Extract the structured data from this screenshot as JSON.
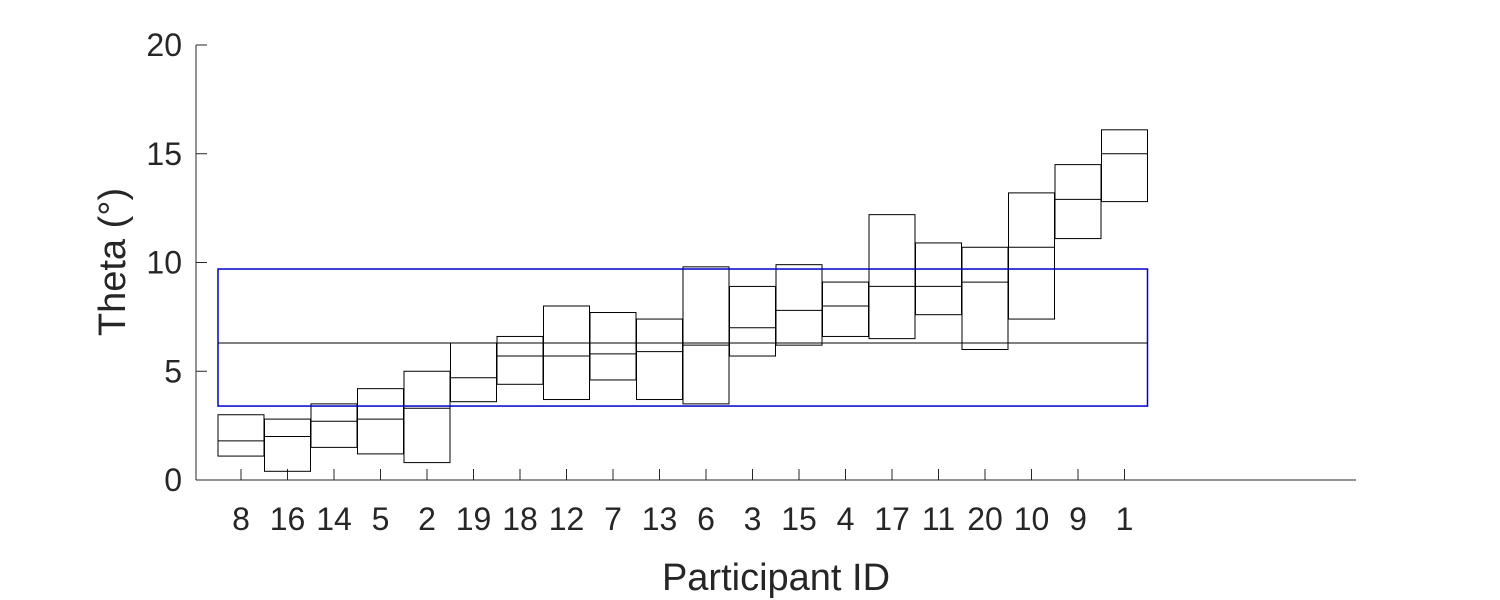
{
  "chart_data": {
    "type": "boxplot",
    "title": "",
    "xlabel": "Participant ID",
    "ylabel": "Theta (°)",
    "ylim": [
      0,
      20
    ],
    "yticks": [
      0,
      5,
      10,
      15,
      20
    ],
    "grid": false,
    "categories": [
      "8",
      "16",
      "14",
      "5",
      "2",
      "19",
      "18",
      "12",
      "7",
      "13",
      "6",
      "3",
      "15",
      "4",
      "17",
      "11",
      "20",
      "10",
      "9",
      "1"
    ],
    "boxes": [
      {
        "low": 1.1,
        "median": 1.8,
        "high": 3.0
      },
      {
        "low": 0.4,
        "median": 2.0,
        "high": 2.8
      },
      {
        "low": 1.5,
        "median": 2.7,
        "high": 3.5
      },
      {
        "low": 1.2,
        "median": 2.8,
        "high": 4.2
      },
      {
        "low": 0.8,
        "median": 3.3,
        "high": 5.0
      },
      {
        "low": 3.6,
        "median": 4.7,
        "high": 6.3
      },
      {
        "low": 4.4,
        "median": 5.7,
        "high": 6.6
      },
      {
        "low": 3.7,
        "median": 5.7,
        "high": 8.0
      },
      {
        "low": 4.6,
        "median": 5.8,
        "high": 7.7
      },
      {
        "low": 3.7,
        "median": 5.9,
        "high": 7.4
      },
      {
        "low": 3.5,
        "median": 6.2,
        "high": 9.8
      },
      {
        "low": 5.7,
        "median": 7.0,
        "high": 8.9
      },
      {
        "low": 6.2,
        "median": 7.8,
        "high": 9.9
      },
      {
        "low": 6.6,
        "median": 8.0,
        "high": 9.1
      },
      {
        "low": 6.5,
        "median": 8.9,
        "high": 12.2
      },
      {
        "low": 7.6,
        "median": 8.9,
        "high": 10.9
      },
      {
        "low": 6.0,
        "median": 9.1,
        "high": 10.7
      },
      {
        "low": 7.4,
        "median": 10.7,
        "high": 13.2
      },
      {
        "low": 11.1,
        "median": 12.9,
        "high": 14.5
      },
      {
        "low": 12.8,
        "median": 15.0,
        "high": 16.1
      }
    ],
    "overall": {
      "low": 3.4,
      "median": 6.3,
      "high": 9.7
    },
    "colors": {
      "boxes": "#000000",
      "overall_box": "#0000cc",
      "axes": "#262626"
    }
  }
}
